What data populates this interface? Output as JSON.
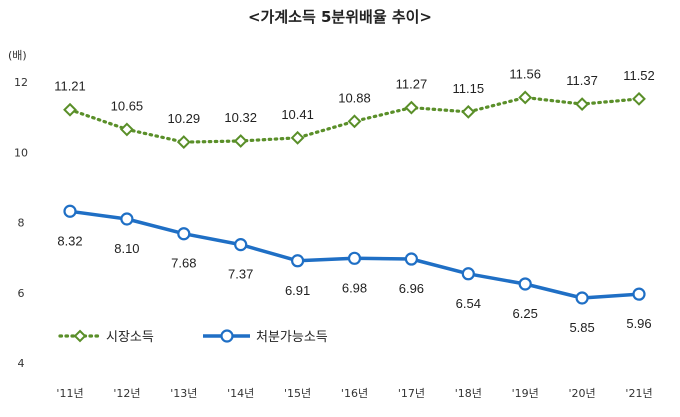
{
  "chart_data": {
    "type": "line",
    "title": "<가계소득 5분위배율 추이>",
    "ylabel": "(배)",
    "xlabel": "",
    "ylim": [
      4,
      12
    ],
    "yticks": [
      4,
      6,
      8,
      10,
      12
    ],
    "categories": [
      "'11년",
      "'12년",
      "'13년",
      "'14년",
      "'15년",
      "'16년",
      "'17년",
      "'18년",
      "'19년",
      "'20년",
      "'21년"
    ],
    "series": [
      {
        "name": "시장소득",
        "color": "#5a8f29",
        "style": "dotted-diamond",
        "values": [
          11.21,
          10.65,
          10.29,
          10.32,
          10.41,
          10.88,
          11.27,
          11.15,
          11.56,
          11.37,
          11.52
        ],
        "labels": [
          "11.21",
          "10.65",
          "10.29",
          "10.32",
          "10.41",
          "10.88",
          "11.27",
          "11.15",
          "11.56",
          "11.37",
          "11.52"
        ]
      },
      {
        "name": "처분가능소득",
        "color": "#1f6fc5",
        "style": "solid-circle",
        "values": [
          8.32,
          8.1,
          7.68,
          7.37,
          6.91,
          6.98,
          6.96,
          6.54,
          6.25,
          5.85,
          5.96
        ],
        "labels": [
          "8.32",
          "8.10",
          "7.68",
          "7.37",
          "6.91",
          "6.98",
          "6.96",
          "6.54",
          "6.25",
          "5.85",
          "5.96"
        ]
      }
    ],
    "legend": "lower-left",
    "grid": false
  }
}
